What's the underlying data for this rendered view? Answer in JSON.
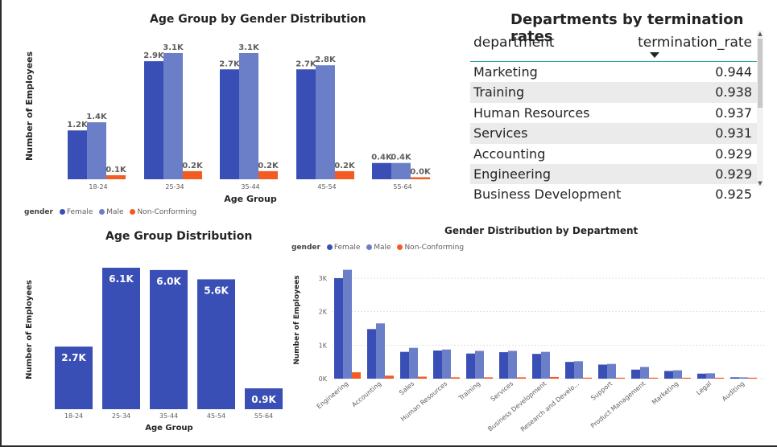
{
  "colors": {
    "female": "#3a4fb5",
    "male": "#6b7fc9",
    "nonconforming": "#f25c22"
  },
  "legend": {
    "title": "gender",
    "female": "Female",
    "male": "Male",
    "nonconforming": "Non-Conforming"
  },
  "chart_data": [
    {
      "type": "bar",
      "title": "Age Group by Gender Distribution",
      "xlabel": "Age Group",
      "ylabel": "Number of Employees",
      "categories": [
        "18-24",
        "25-34",
        "35-44",
        "45-54",
        "55-64"
      ],
      "series": [
        {
          "name": "Female",
          "values": [
            1200,
            2900,
            2700,
            2700,
            400
          ],
          "labels": [
            "1.2K",
            "2.9K",
            "2.7K",
            "2.7K",
            "0.4K"
          ]
        },
        {
          "name": "Male",
          "values": [
            1400,
            3100,
            3100,
            2800,
            400
          ],
          "labels": [
            "1.4K",
            "3.1K",
            "3.1K",
            "2.8K",
            "0.4K"
          ]
        },
        {
          "name": "Non-Conforming",
          "values": [
            100,
            200,
            200,
            200,
            40
          ],
          "labels": [
            "0.1K",
            "0.2K",
            "0.2K",
            "0.2K",
            "0.0K"
          ]
        }
      ],
      "legend_position": "bottom-left",
      "grid": false
    },
    {
      "type": "bar",
      "title": "Age Group Distribution",
      "xlabel": "Age Group",
      "ylabel": "Number of Employees",
      "categories": [
        "18-24",
        "25-34",
        "35-44",
        "45-54",
        "55-64"
      ],
      "values": [
        2700,
        6100,
        6000,
        5600,
        900
      ],
      "labels": [
        "2.7K",
        "6.1K",
        "6.0K",
        "5.6K",
        "0.9K"
      ],
      "grid": false
    },
    {
      "type": "bar",
      "title": "Gender Distribution by Department",
      "ylabel": "Number of Employees",
      "categories": [
        "Engineering",
        "Accounting",
        "Sales",
        "Human Resources",
        "Training",
        "Services",
        "Business Development",
        "Research and Develo...",
        "Support",
        "Product Management",
        "Marketing",
        "Legal",
        "Auditing"
      ],
      "series": [
        {
          "name": "Female",
          "values": [
            3000,
            1480,
            800,
            840,
            750,
            790,
            740,
            500,
            420,
            270,
            230,
            150,
            40
          ]
        },
        {
          "name": "Male",
          "values": [
            3250,
            1650,
            920,
            870,
            830,
            830,
            800,
            520,
            440,
            350,
            250,
            160,
            40
          ]
        },
        {
          "name": "Non-Conforming",
          "values": [
            190,
            90,
            60,
            40,
            40,
            40,
            50,
            30,
            20,
            10,
            10,
            5,
            2
          ]
        }
      ],
      "yticks": [
        0,
        1000,
        2000,
        3000
      ],
      "ytick_labels": [
        "0K",
        "1K",
        "2K",
        "3K"
      ],
      "ylim": [
        0,
        3300
      ],
      "grid": true,
      "legend_position": "top-left"
    },
    {
      "type": "table",
      "title": "Departments by termination rates",
      "columns": [
        "department",
        "termination_rate"
      ],
      "rows": [
        [
          "Marketing",
          "0.944"
        ],
        [
          "Training",
          "0.938"
        ],
        [
          "Human Resources",
          "0.937"
        ],
        [
          "Services",
          "0.931"
        ],
        [
          "Accounting",
          "0.929"
        ],
        [
          "Engineering",
          "0.929"
        ],
        [
          "Business Development",
          "0.925"
        ]
      ]
    }
  ]
}
